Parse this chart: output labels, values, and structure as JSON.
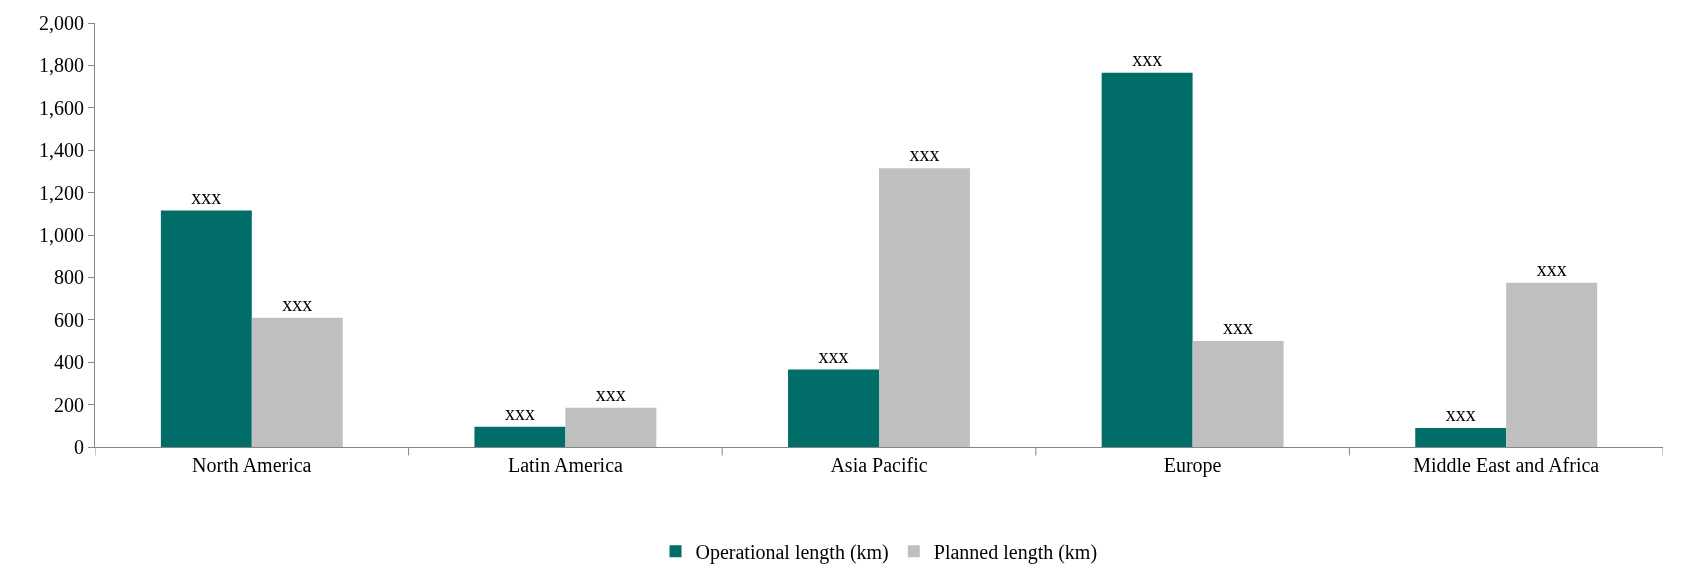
{
  "chart_data": {
    "type": "bar",
    "categories": [
      "North America",
      "Latin America",
      "Asia Pacific",
      "Europe",
      "Middle East and Africa"
    ],
    "series": [
      {
        "name": "Operational length (km)",
        "color": "#006d68",
        "values": [
          1115,
          95,
          365,
          1765,
          90
        ],
        "value_labels": [
          "xxx",
          "xxx",
          "xxx",
          "xxx",
          "xxx"
        ]
      },
      {
        "name": "Planned length (km)",
        "color": "#bfbfbf",
        "values": [
          610,
          185,
          1315,
          500,
          775
        ],
        "value_labels": [
          "xxx",
          "xxx",
          "xxx",
          "xxx",
          "xxx"
        ]
      }
    ],
    "ylim": [
      0,
      2000
    ],
    "yticks": [
      {
        "value": 0,
        "label": "0"
      },
      {
        "value": 200,
        "label": "200"
      },
      {
        "value": 400,
        "label": "400"
      },
      {
        "value": 600,
        "label": "600"
      },
      {
        "value": 800,
        "label": "800"
      },
      {
        "value": 1000,
        "label": "1,000"
      },
      {
        "value": 1200,
        "label": "1,200"
      },
      {
        "value": 1400,
        "label": "1,400"
      },
      {
        "value": 1600,
        "label": "1,600"
      },
      {
        "value": 1800,
        "label": "1,800"
      },
      {
        "value": 2000,
        "label": "2,000"
      }
    ],
    "legend": "bottom"
  }
}
